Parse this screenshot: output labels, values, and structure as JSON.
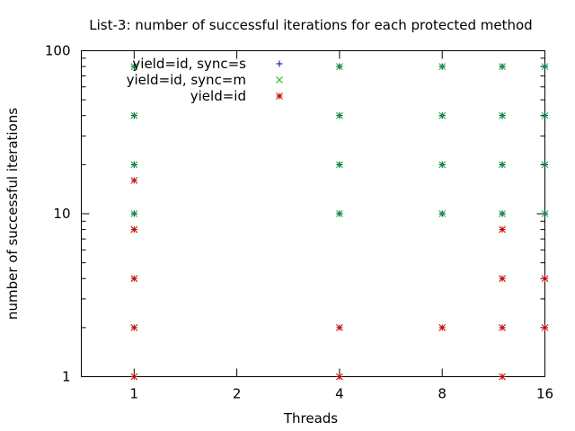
{
  "chart_data": {
    "type": "scatter",
    "title": "List-3: number of successful iterations for each protected method",
    "xlabel": "Threads",
    "ylabel": "number of successful iterations",
    "x_scale": "log2",
    "y_scale": "log10",
    "xlim": [
      0.7,
      16
    ],
    "ylim": [
      1,
      100
    ],
    "x_ticks": [
      {
        "value": 1,
        "label": "1"
      },
      {
        "value": 2,
        "label": "2"
      },
      {
        "value": 4,
        "label": "4"
      },
      {
        "value": 8,
        "label": "8"
      },
      {
        "value": 16,
        "label": "16"
      }
    ],
    "y_ticks": [
      {
        "value": 1,
        "label": "1"
      },
      {
        "value": 10,
        "label": "10"
      },
      {
        "value": 100,
        "label": "100"
      }
    ],
    "grid": false,
    "legend_position": "top-left",
    "series": [
      {
        "name": "yield=id, sync=s",
        "color": "#0000a0",
        "marker": "plus",
        "points": [
          [
            1,
            10
          ],
          [
            1,
            20
          ],
          [
            1,
            40
          ],
          [
            1,
            80
          ],
          [
            4,
            10
          ],
          [
            4,
            20
          ],
          [
            4,
            40
          ],
          [
            4,
            80
          ],
          [
            8,
            10
          ],
          [
            8,
            20
          ],
          [
            8,
            40
          ],
          [
            8,
            80
          ],
          [
            12,
            10
          ],
          [
            12,
            20
          ],
          [
            12,
            40
          ],
          [
            12,
            80
          ],
          [
            16,
            10
          ],
          [
            16,
            20
          ],
          [
            16,
            40
          ],
          [
            16,
            80
          ]
        ]
      },
      {
        "name": "yield=id, sync=m",
        "color": "#00c000",
        "marker": "cross",
        "points": [
          [
            1,
            10
          ],
          [
            1,
            20
          ],
          [
            1,
            40
          ],
          [
            1,
            80
          ],
          [
            4,
            10
          ],
          [
            4,
            20
          ],
          [
            4,
            40
          ],
          [
            4,
            80
          ],
          [
            8,
            10
          ],
          [
            8,
            20
          ],
          [
            8,
            40
          ],
          [
            8,
            80
          ],
          [
            12,
            10
          ],
          [
            12,
            20
          ],
          [
            12,
            40
          ],
          [
            12,
            80
          ],
          [
            16,
            10
          ],
          [
            16,
            20
          ],
          [
            16,
            40
          ],
          [
            16,
            80
          ]
        ]
      },
      {
        "name": "yield=id",
        "color": "#c00000",
        "marker": "star",
        "points": [
          [
            1,
            1
          ],
          [
            1,
            2
          ],
          [
            1,
            4
          ],
          [
            1,
            8
          ],
          [
            1,
            16
          ],
          [
            4,
            1
          ],
          [
            4,
            2
          ],
          [
            8,
            2
          ],
          [
            12,
            1
          ],
          [
            12,
            2
          ],
          [
            12,
            4
          ],
          [
            12,
            8
          ],
          [
            16,
            2
          ],
          [
            16,
            4
          ]
        ]
      }
    ]
  }
}
